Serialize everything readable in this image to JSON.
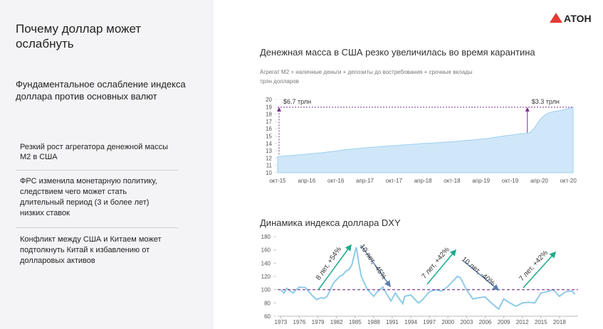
{
  "logo": "АТОН",
  "sidebar": {
    "title": "Почему доллар может ослабнуть",
    "subtitle": "Фундаментальное ослабление индекса доллара против основных валют",
    "bullets": [
      "Резкий рост агрегатора денежной массы М2 в США",
      "ФРС изменила монетарную политику, следствием чего может стать длительный период (3 и более лет) низких ставок",
      "Конфликт между США и Китаем может подтолкнуть Китай к избавлению от долларовых активов"
    ]
  },
  "chart_data": [
    {
      "type": "area",
      "title": "Денежная масса в США резко увеличилась во время карантина",
      "subtitle": "Агрегат М2 = наличные деньги + депозиты до востребования + срочные вклады",
      "y_label": "трлн долларов",
      "color": "#cfe7f8",
      "categories": [
        "окт-15",
        null,
        null,
        null,
        null,
        null,
        "апр-16",
        null,
        null,
        null,
        null,
        null,
        "окт-16",
        null,
        null,
        null,
        null,
        null,
        "апр-17",
        null,
        null,
        null,
        null,
        null,
        "окт-17",
        null,
        null,
        null,
        null,
        null,
        "апр-18",
        null,
        null,
        null,
        null,
        null,
        "окт-18",
        null,
        null,
        null,
        null,
        null,
        "апр-19",
        null,
        null,
        null,
        null,
        null,
        "окт-19",
        null,
        null,
        null,
        null,
        null,
        "апр-20",
        null,
        null,
        null,
        null,
        null,
        "окт-20",
        null
      ],
      "values": [
        12.2,
        12.25,
        12.3,
        12.36,
        12.42,
        12.48,
        12.55,
        12.6,
        12.66,
        12.72,
        12.8,
        12.88,
        12.95,
        13.05,
        13.15,
        13.2,
        13.25,
        13.32,
        13.4,
        13.45,
        13.5,
        13.55,
        13.6,
        13.65,
        13.7,
        13.75,
        13.8,
        13.84,
        13.88,
        13.93,
        14.0,
        14.02,
        14.05,
        14.1,
        14.15,
        14.2,
        14.22,
        14.28,
        14.35,
        14.42,
        14.45,
        14.5,
        14.6,
        14.65,
        14.75,
        14.85,
        14.95,
        15.05,
        15.12,
        15.2,
        15.3,
        15.35,
        15.45,
        16.1,
        17.1,
        17.8,
        18.2,
        18.35,
        18.45,
        18.6,
        18.75,
        18.95
      ],
      "ylim": [
        10,
        20
      ],
      "yticks": [
        10,
        11,
        12,
        13,
        14,
        15,
        16,
        17,
        18,
        19,
        20
      ],
      "annotations": [
        "$6.7 трлн",
        "$3.3 трлн"
      ]
    },
    {
      "type": "line",
      "title": "Динамика индекса доллара DXY",
      "color": "#8fcbe8",
      "x": [
        1973,
        1973.5,
        1974,
        1974.5,
        1975,
        1975.5,
        1976,
        1977,
        1978,
        1978.8,
        1979.5,
        1980,
        1980.5,
        1981,
        1981.5,
        1982,
        1982.5,
        1983,
        1983.5,
        1984,
        1984.5,
        1985,
        1985.2,
        1985.6,
        1986,
        1986.5,
        1987,
        1988,
        1988.5,
        1989,
        1989.5,
        1990,
        1990.8,
        1991.5,
        1992,
        1992.7,
        1993,
        1994,
        1995,
        1995.3,
        1996,
        1997,
        1998,
        1999,
        2000,
        2001,
        2001.5,
        2002,
        2003,
        2004,
        2005,
        2006,
        2007,
        2008,
        2008.2,
        2009,
        2010,
        2011,
        2012,
        2013,
        2014,
        2015,
        2016,
        2017,
        2018,
        2019,
        2020,
        2020.5
      ],
      "values": [
        100,
        95,
        102,
        98,
        95,
        100,
        104,
        103,
        92,
        85,
        88,
        87,
        90,
        100,
        110,
        115,
        120,
        122,
        128,
        130,
        138,
        158,
        164,
        140,
        120,
        110,
        100,
        90,
        96,
        100,
        104,
        95,
        83,
        95,
        88,
        79,
        90,
        92,
        82,
        80,
        86,
        97,
        100,
        98,
        105,
        115,
        120,
        118,
        100,
        86,
        88,
        89,
        80,
        72,
        71,
        86,
        80,
        75,
        80,
        81,
        80,
        95,
        97,
        100,
        90,
        97,
        98,
        93
      ],
      "xlim": [
        1972.5,
        2021
      ],
      "xticks": [
        1973,
        1976,
        1979,
        1982,
        1985,
        1988,
        1991,
        1994,
        1997,
        2000,
        2003,
        2006,
        2009,
        2012,
        2015,
        2018
      ],
      "ylim": [
        60,
        180
      ],
      "yticks": [
        60,
        80,
        100,
        120,
        140,
        160,
        180
      ],
      "reference_line": 100,
      "annotations": [
        "8 лет, +54%",
        "10 лет, -45%",
        "7 лет, +42%",
        "10 лет, -40%",
        "7 лет, +42%"
      ]
    }
  ]
}
